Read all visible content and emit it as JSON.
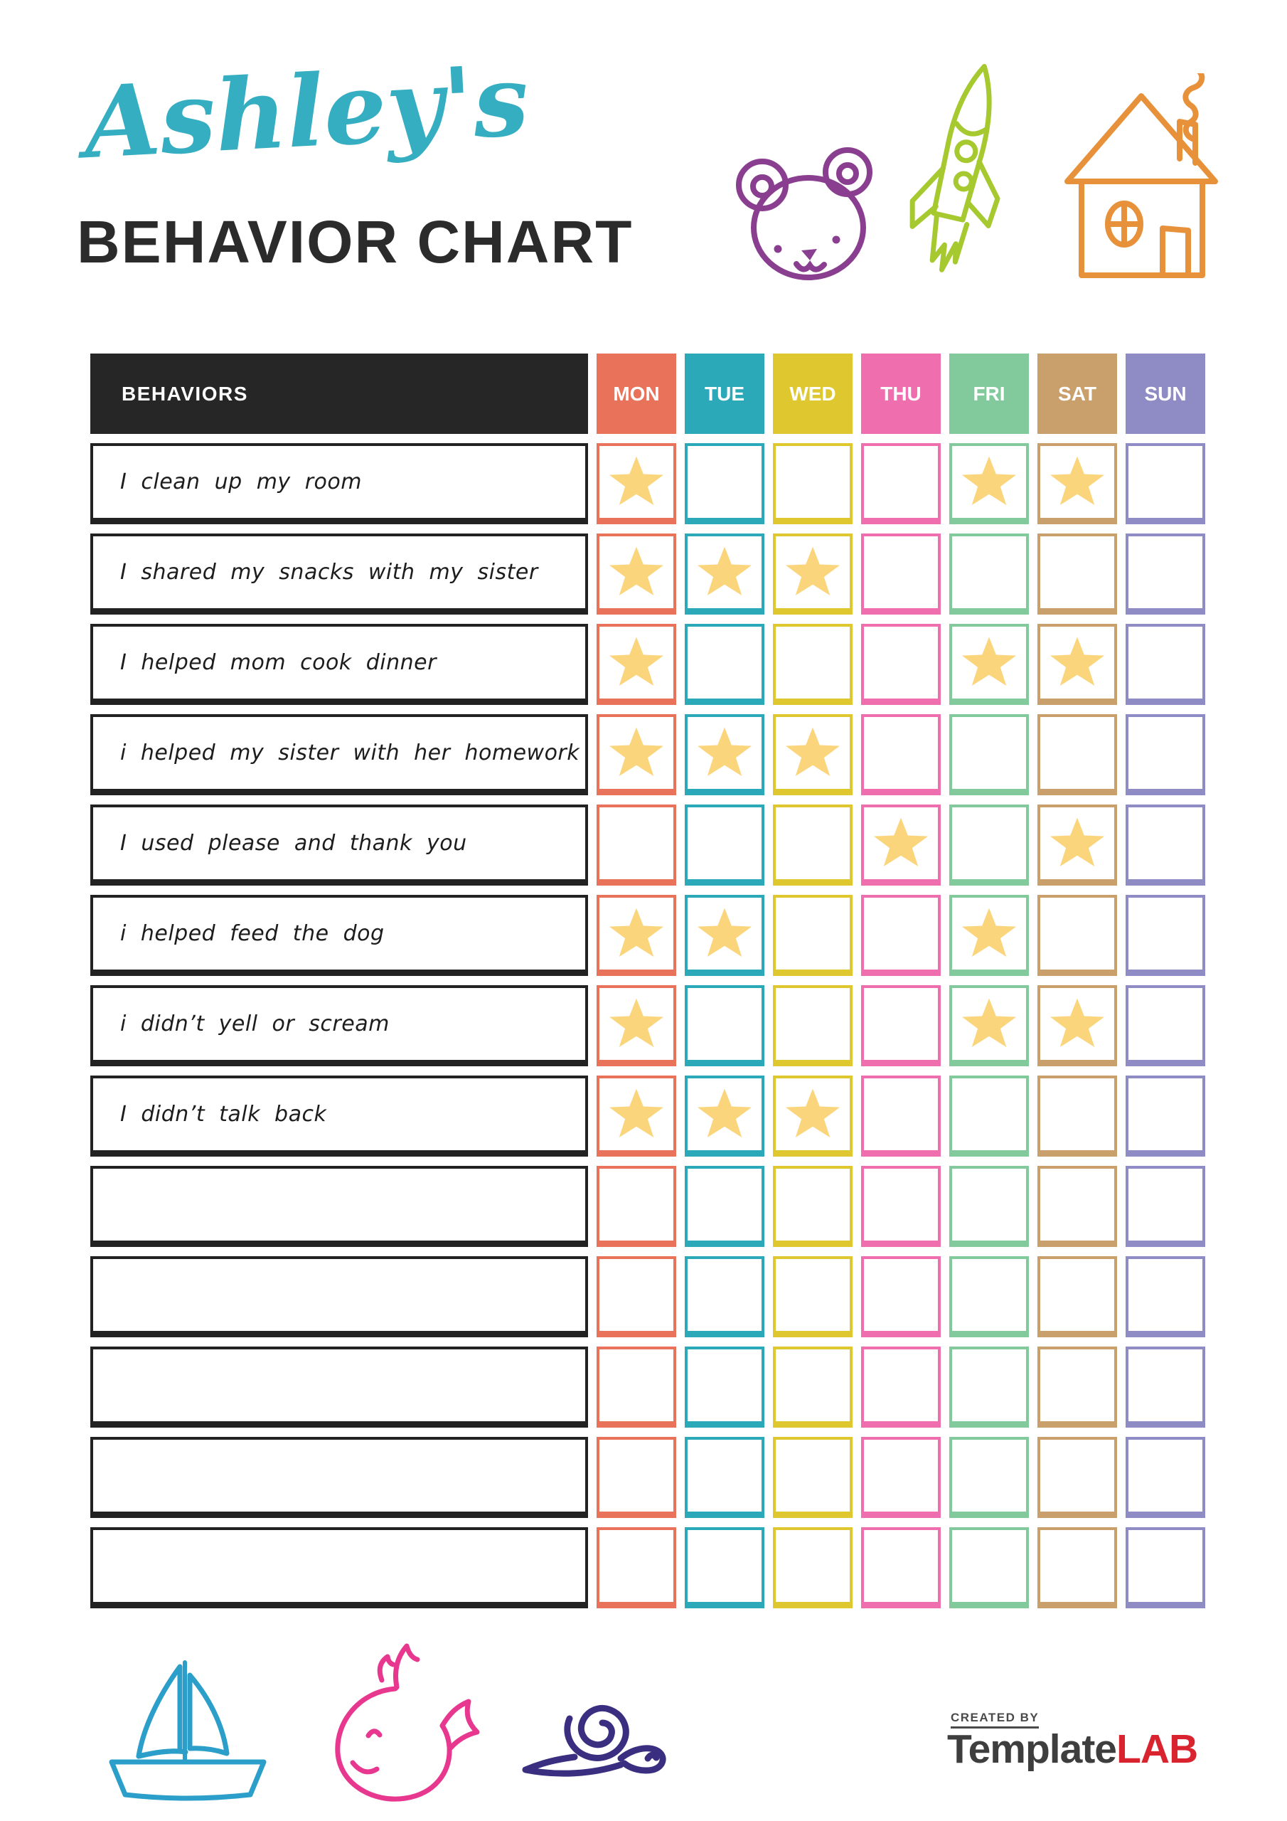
{
  "page_title": {
    "name": "Ashley's",
    "subtitle": "BEHAVIOR CHART",
    "script_color": "#36AEC1",
    "subtitle_color": "#2B2B2B"
  },
  "table": {
    "behaviors_header": "BEHAVIORS",
    "header_bg": "#262626",
    "star_color": "#FAD57C",
    "days": [
      {
        "label": "MON",
        "color": "#E8735A"
      },
      {
        "label": "TUE",
        "color": "#2BA9B9"
      },
      {
        "label": "WED",
        "color": "#DFC72F"
      },
      {
        "label": "THU",
        "color": "#EE6EAE"
      },
      {
        "label": "FRI",
        "color": "#82C99B"
      },
      {
        "label": "SAT",
        "color": "#C9A06B"
      },
      {
        "label": "SUN",
        "color": "#8E8BC5"
      }
    ],
    "rows": [
      {
        "label": "I clean up my room",
        "stars": [
          1,
          0,
          0,
          0,
          1,
          1,
          0
        ]
      },
      {
        "label": "I shared my snacks with my sister",
        "stars": [
          1,
          1,
          1,
          0,
          0,
          0,
          0
        ]
      },
      {
        "label": "I helped mom cook dinner",
        "stars": [
          1,
          0,
          0,
          0,
          1,
          1,
          0
        ]
      },
      {
        "label": "i helped my sister with her homework",
        "stars": [
          1,
          1,
          1,
          0,
          0,
          0,
          0
        ]
      },
      {
        "label": "I used please and thank you",
        "stars": [
          0,
          0,
          0,
          1,
          0,
          1,
          0
        ]
      },
      {
        "label": "i helped feed the dog",
        "stars": [
          1,
          1,
          0,
          0,
          1,
          0,
          0
        ]
      },
      {
        "label": "i didn’t yell or scream",
        "stars": [
          1,
          0,
          0,
          0,
          1,
          1,
          0
        ]
      },
      {
        "label": "I didn’t talk back",
        "stars": [
          1,
          1,
          1,
          0,
          0,
          0,
          0
        ]
      },
      {
        "label": "",
        "stars": [
          0,
          0,
          0,
          0,
          0,
          0,
          0
        ]
      },
      {
        "label": "",
        "stars": [
          0,
          0,
          0,
          0,
          0,
          0,
          0
        ]
      },
      {
        "label": "",
        "stars": [
          0,
          0,
          0,
          0,
          0,
          0,
          0
        ]
      },
      {
        "label": "",
        "stars": [
          0,
          0,
          0,
          0,
          0,
          0,
          0
        ]
      },
      {
        "label": "",
        "stars": [
          0,
          0,
          0,
          0,
          0,
          0,
          0
        ]
      }
    ]
  },
  "decorations": {
    "top_icons": [
      "teddy-bear-icon",
      "rocket-icon",
      "house-icon"
    ],
    "bottom_icons": [
      "sailboat-icon",
      "whale-icon",
      "snail-icon"
    ],
    "colors": {
      "bear": "#8A3E8F",
      "rocket": "#A5C92F",
      "house": "#E8913B",
      "boat": "#2B9FC9",
      "whale": "#E8378F",
      "snail": "#3A2E80"
    }
  },
  "footer_brand": {
    "created_by": "CREATED BY",
    "brand_dark": "Template",
    "brand_red": "LAB",
    "dark_color": "#3E3E3E",
    "red_color": "#D9232E"
  }
}
